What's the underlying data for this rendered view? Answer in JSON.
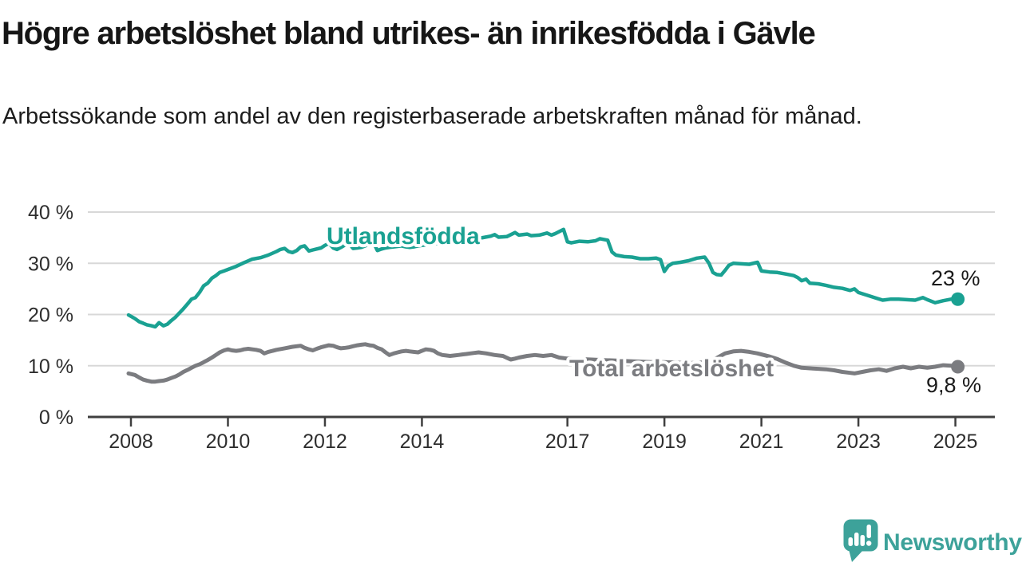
{
  "header": {
    "title": "Högre arbetslöshet bland utrikes- än inrikesfödda i Gävle",
    "subtitle": "Arbetssökande som andel av den registerbaserade arbetskraften månad för månad."
  },
  "chart_data": {
    "type": "line",
    "title": "Högre arbetslöshet bland utrikes- än inrikesfödda i Gävle",
    "xlabel": "",
    "ylabel": "Arbetssökande som andel av den registerbaserade arbetskraften (%)",
    "x_unit": "year (monthly data)",
    "xlim": [
      2007.95,
      2025.1
    ],
    "ylim": [
      0,
      42
    ],
    "grid": "horizontal",
    "legend_position": "inline-labels",
    "x_ticks": {
      "values": [
        2008,
        2010,
        2012,
        2014,
        2017,
        2019,
        2021,
        2023,
        2025
      ],
      "labels": [
        "2008",
        "2010",
        "2012",
        "2014",
        "2017",
        "2019",
        "2021",
        "2023",
        "2025"
      ]
    },
    "y_ticks": {
      "values": [
        0,
        10,
        20,
        30,
        40
      ],
      "labels": [
        "0 %",
        "10 %",
        "20 %",
        "30 %",
        "40 %"
      ]
    },
    "grid_color": "#d8d8d8",
    "axis_color": "#3f3f3f",
    "tick_label_color": "#2e2e2e",
    "annotation_color": "#1a1a1a",
    "series": [
      {
        "name": "Utlandsfödda",
        "color": "#1aa192",
        "end_label": "23 %",
        "end_value": 23,
        "points": [
          [
            2007.95,
            19.9
          ],
          [
            2008.08,
            19.2
          ],
          [
            2008.17,
            18.6
          ],
          [
            2008.25,
            18.3
          ],
          [
            2008.33,
            18.0
          ],
          [
            2008.42,
            17.8
          ],
          [
            2008.5,
            17.6
          ],
          [
            2008.58,
            18.4
          ],
          [
            2008.67,
            17.8
          ],
          [
            2008.75,
            18.1
          ],
          [
            2008.83,
            18.8
          ],
          [
            2008.92,
            19.5
          ],
          [
            2009.0,
            20.3
          ],
          [
            2009.08,
            21.1
          ],
          [
            2009.17,
            22.1
          ],
          [
            2009.25,
            23.0
          ],
          [
            2009.33,
            23.3
          ],
          [
            2009.42,
            24.4
          ],
          [
            2009.5,
            25.6
          ],
          [
            2009.58,
            26.1
          ],
          [
            2009.67,
            27.1
          ],
          [
            2009.75,
            27.6
          ],
          [
            2009.83,
            28.2
          ],
          [
            2009.92,
            28.5
          ],
          [
            2010.0,
            28.8
          ],
          [
            2010.17,
            29.4
          ],
          [
            2010.33,
            30.1
          ],
          [
            2010.5,
            30.8
          ],
          [
            2010.67,
            31.1
          ],
          [
            2010.83,
            31.6
          ],
          [
            2011.0,
            32.3
          ],
          [
            2011.08,
            32.7
          ],
          [
            2011.17,
            32.9
          ],
          [
            2011.25,
            32.3
          ],
          [
            2011.33,
            32.1
          ],
          [
            2011.42,
            32.5
          ],
          [
            2011.5,
            33.2
          ],
          [
            2011.58,
            33.4
          ],
          [
            2011.67,
            32.4
          ],
          [
            2011.75,
            32.6
          ],
          [
            2011.83,
            32.8
          ],
          [
            2011.92,
            33.0
          ],
          [
            2012.0,
            33.5
          ],
          [
            2012.08,
            33.9
          ],
          [
            2012.17,
            33.0
          ],
          [
            2012.25,
            32.7
          ],
          [
            2012.33,
            33.1
          ],
          [
            2012.42,
            33.6
          ],
          [
            2012.5,
            33.8
          ],
          [
            2012.58,
            32.9
          ],
          [
            2012.67,
            33.0
          ],
          [
            2012.75,
            33.1
          ],
          [
            2012.83,
            33.4
          ],
          [
            2012.92,
            33.7
          ],
          [
            2013.0,
            34.1
          ],
          [
            2013.08,
            32.5
          ],
          [
            2013.17,
            32.8
          ],
          [
            2013.25,
            33.0
          ],
          [
            2013.33,
            33.1
          ],
          [
            2013.42,
            33.2
          ],
          [
            2013.5,
            33.3
          ],
          [
            2013.58,
            33.4
          ],
          [
            2013.67,
            33.2
          ],
          [
            2013.75,
            33.1
          ],
          [
            2013.83,
            33.2
          ],
          [
            2013.92,
            33.4
          ],
          [
            2014.0,
            33.5
          ],
          [
            2014.25,
            33.8
          ],
          [
            2014.5,
            34.1
          ],
          [
            2014.75,
            34.4
          ],
          [
            2015.0,
            34.6
          ],
          [
            2015.25,
            35.0
          ],
          [
            2015.42,
            35.3
          ],
          [
            2015.5,
            35.6
          ],
          [
            2015.58,
            35.1
          ],
          [
            2015.75,
            35.2
          ],
          [
            2015.92,
            36.0
          ],
          [
            2016.0,
            35.5
          ],
          [
            2016.17,
            35.7
          ],
          [
            2016.25,
            35.4
          ],
          [
            2016.42,
            35.5
          ],
          [
            2016.58,
            35.9
          ],
          [
            2016.67,
            35.5
          ],
          [
            2016.75,
            35.8
          ],
          [
            2016.92,
            36.6
          ],
          [
            2017.0,
            34.2
          ],
          [
            2017.08,
            34.0
          ],
          [
            2017.25,
            34.3
          ],
          [
            2017.42,
            34.2
          ],
          [
            2017.58,
            34.4
          ],
          [
            2017.67,
            34.8
          ],
          [
            2017.83,
            34.5
          ],
          [
            2017.92,
            32.2
          ],
          [
            2018.0,
            31.6
          ],
          [
            2018.17,
            31.3
          ],
          [
            2018.33,
            31.2
          ],
          [
            2018.5,
            30.9
          ],
          [
            2018.67,
            30.9
          ],
          [
            2018.83,
            31.0
          ],
          [
            2018.92,
            30.7
          ],
          [
            2019.0,
            28.4
          ],
          [
            2019.08,
            29.5
          ],
          [
            2019.17,
            30.0
          ],
          [
            2019.33,
            30.2
          ],
          [
            2019.5,
            30.5
          ],
          [
            2019.67,
            31.0
          ],
          [
            2019.83,
            31.2
          ],
          [
            2019.92,
            30.0
          ],
          [
            2020.0,
            28.2
          ],
          [
            2020.08,
            27.8
          ],
          [
            2020.17,
            27.7
          ],
          [
            2020.25,
            28.6
          ],
          [
            2020.33,
            29.6
          ],
          [
            2020.42,
            30.0
          ],
          [
            2020.58,
            29.9
          ],
          [
            2020.75,
            29.8
          ],
          [
            2020.92,
            30.2
          ],
          [
            2021.0,
            28.5
          ],
          [
            2021.17,
            28.3
          ],
          [
            2021.33,
            28.2
          ],
          [
            2021.5,
            27.9
          ],
          [
            2021.67,
            27.6
          ],
          [
            2021.75,
            27.2
          ],
          [
            2021.83,
            26.6
          ],
          [
            2021.92,
            26.9
          ],
          [
            2022.0,
            26.1
          ],
          [
            2022.17,
            26.0
          ],
          [
            2022.33,
            25.7
          ],
          [
            2022.5,
            25.3
          ],
          [
            2022.67,
            25.1
          ],
          [
            2022.83,
            24.7
          ],
          [
            2022.92,
            25.0
          ],
          [
            2023.0,
            24.3
          ],
          [
            2023.17,
            23.8
          ],
          [
            2023.33,
            23.3
          ],
          [
            2023.5,
            22.8
          ],
          [
            2023.67,
            23.0
          ],
          [
            2023.83,
            23.0
          ],
          [
            2024.0,
            22.9
          ],
          [
            2024.17,
            22.8
          ],
          [
            2024.33,
            23.3
          ],
          [
            2024.42,
            22.9
          ],
          [
            2024.58,
            22.3
          ],
          [
            2024.75,
            22.7
          ],
          [
            2024.92,
            23.0
          ],
          [
            2025.05,
            23.0
          ]
        ]
      },
      {
        "name": "Total arbetslöshet",
        "color": "#7b7c80",
        "end_label": "9,8 %",
        "end_value": 9.8,
        "points": [
          [
            2007.95,
            8.5
          ],
          [
            2008.08,
            8.2
          ],
          [
            2008.17,
            7.7
          ],
          [
            2008.25,
            7.3
          ],
          [
            2008.33,
            7.1
          ],
          [
            2008.42,
            6.9
          ],
          [
            2008.5,
            6.9
          ],
          [
            2008.58,
            7.0
          ],
          [
            2008.67,
            7.1
          ],
          [
            2008.75,
            7.3
          ],
          [
            2008.83,
            7.6
          ],
          [
            2008.92,
            7.9
          ],
          [
            2009.0,
            8.3
          ],
          [
            2009.08,
            8.8
          ],
          [
            2009.17,
            9.2
          ],
          [
            2009.25,
            9.6
          ],
          [
            2009.33,
            10.0
          ],
          [
            2009.42,
            10.3
          ],
          [
            2009.5,
            10.7
          ],
          [
            2009.58,
            11.1
          ],
          [
            2009.67,
            11.6
          ],
          [
            2009.75,
            12.1
          ],
          [
            2009.83,
            12.6
          ],
          [
            2009.92,
            13.0
          ],
          [
            2010.0,
            13.2
          ],
          [
            2010.08,
            13.0
          ],
          [
            2010.17,
            12.9
          ],
          [
            2010.25,
            13.0
          ],
          [
            2010.33,
            13.2
          ],
          [
            2010.42,
            13.3
          ],
          [
            2010.5,
            13.2
          ],
          [
            2010.58,
            13.1
          ],
          [
            2010.67,
            12.9
          ],
          [
            2010.75,
            12.4
          ],
          [
            2010.83,
            12.7
          ],
          [
            2010.92,
            12.9
          ],
          [
            2011.0,
            13.1
          ],
          [
            2011.17,
            13.4
          ],
          [
            2011.33,
            13.7
          ],
          [
            2011.5,
            13.9
          ],
          [
            2011.58,
            13.5
          ],
          [
            2011.67,
            13.2
          ],
          [
            2011.75,
            13.0
          ],
          [
            2011.83,
            13.3
          ],
          [
            2011.92,
            13.6
          ],
          [
            2012.0,
            13.8
          ],
          [
            2012.08,
            14.0
          ],
          [
            2012.17,
            13.9
          ],
          [
            2012.25,
            13.6
          ],
          [
            2012.33,
            13.4
          ],
          [
            2012.42,
            13.5
          ],
          [
            2012.5,
            13.6
          ],
          [
            2012.58,
            13.8
          ],
          [
            2012.67,
            14.0
          ],
          [
            2012.75,
            14.1
          ],
          [
            2012.83,
            14.2
          ],
          [
            2012.92,
            14.0
          ],
          [
            2013.0,
            13.9
          ],
          [
            2013.08,
            13.5
          ],
          [
            2013.17,
            13.2
          ],
          [
            2013.25,
            12.6
          ],
          [
            2013.33,
            12.1
          ],
          [
            2013.42,
            12.4
          ],
          [
            2013.5,
            12.6
          ],
          [
            2013.58,
            12.8
          ],
          [
            2013.67,
            12.9
          ],
          [
            2013.75,
            12.8
          ],
          [
            2013.83,
            12.7
          ],
          [
            2013.92,
            12.6
          ],
          [
            2014.0,
            12.9
          ],
          [
            2014.08,
            13.2
          ],
          [
            2014.17,
            13.1
          ],
          [
            2014.25,
            12.9
          ],
          [
            2014.33,
            12.4
          ],
          [
            2014.42,
            12.1
          ],
          [
            2014.5,
            12.0
          ],
          [
            2014.58,
            11.9
          ],
          [
            2014.67,
            12.0
          ],
          [
            2014.75,
            12.1
          ],
          [
            2014.83,
            12.2
          ],
          [
            2014.92,
            12.3
          ],
          [
            2015.0,
            12.4
          ],
          [
            2015.08,
            12.5
          ],
          [
            2015.17,
            12.6
          ],
          [
            2015.25,
            12.5
          ],
          [
            2015.33,
            12.4
          ],
          [
            2015.5,
            12.1
          ],
          [
            2015.67,
            11.9
          ],
          [
            2015.83,
            11.2
          ],
          [
            2015.92,
            11.4
          ],
          [
            2016.0,
            11.6
          ],
          [
            2016.17,
            11.9
          ],
          [
            2016.33,
            12.1
          ],
          [
            2016.5,
            11.9
          ],
          [
            2016.67,
            12.1
          ],
          [
            2016.83,
            11.6
          ],
          [
            2017.0,
            11.4
          ],
          [
            2017.25,
            11.3
          ],
          [
            2017.5,
            11.2
          ],
          [
            2017.75,
            11.1
          ],
          [
            2018.0,
            11.0
          ],
          [
            2018.25,
            10.9
          ],
          [
            2018.5,
            10.8
          ],
          [
            2018.75,
            10.7
          ],
          [
            2019.0,
            10.7
          ],
          [
            2019.25,
            10.6
          ],
          [
            2019.5,
            10.5
          ],
          [
            2019.75,
            10.6
          ],
          [
            2019.92,
            10.9
          ],
          [
            2020.08,
            11.5
          ],
          [
            2020.25,
            12.4
          ],
          [
            2020.42,
            12.8
          ],
          [
            2020.58,
            12.9
          ],
          [
            2020.75,
            12.7
          ],
          [
            2020.92,
            12.4
          ],
          [
            2021.0,
            12.2
          ],
          [
            2021.17,
            11.8
          ],
          [
            2021.33,
            11.3
          ],
          [
            2021.5,
            10.6
          ],
          [
            2021.67,
            10.0
          ],
          [
            2021.83,
            9.6
          ],
          [
            2022.0,
            9.5
          ],
          [
            2022.17,
            9.4
          ],
          [
            2022.33,
            9.3
          ],
          [
            2022.5,
            9.1
          ],
          [
            2022.67,
            8.8
          ],
          [
            2022.83,
            8.6
          ],
          [
            2022.92,
            8.5
          ],
          [
            2023.08,
            8.8
          ],
          [
            2023.25,
            9.1
          ],
          [
            2023.42,
            9.3
          ],
          [
            2023.58,
            9.0
          ],
          [
            2023.75,
            9.5
          ],
          [
            2023.92,
            9.8
          ],
          [
            2024.08,
            9.5
          ],
          [
            2024.25,
            9.8
          ],
          [
            2024.42,
            9.6
          ],
          [
            2024.58,
            9.8
          ],
          [
            2024.75,
            10.1
          ],
          [
            2024.92,
            10.0
          ],
          [
            2025.05,
            9.8
          ]
        ]
      }
    ]
  },
  "branding": {
    "logo_text": "Newsworthy",
    "color": "#3da29a"
  }
}
